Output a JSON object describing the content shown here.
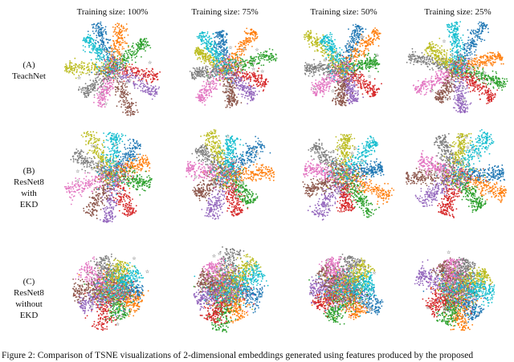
{
  "columns": [
    "Training size: 100%",
    "Training size: 75%",
    "Training size: 50%",
    "Training size: 25%"
  ],
  "rows": [
    {
      "label_lines": [
        "(A)",
        "TeachNet"
      ]
    },
    {
      "label_lines": [
        "(B)",
        "ResNet8",
        "with",
        "EKD"
      ]
    },
    {
      "label_lines": [
        "(C)",
        "ResNet8",
        "without",
        "EKD"
      ]
    }
  ],
  "caption": "Figure 2: Comparison of TSNE visualizations of 2-dimensional embeddings generated using features produced by the proposed",
  "class_colors": [
    "#1f77b4",
    "#ff7f0e",
    "#2ca02c",
    "#d62728",
    "#9467bd",
    "#8c564b",
    "#e377c2",
    "#7f7f7f",
    "#bcbd22",
    "#17becf"
  ]
}
